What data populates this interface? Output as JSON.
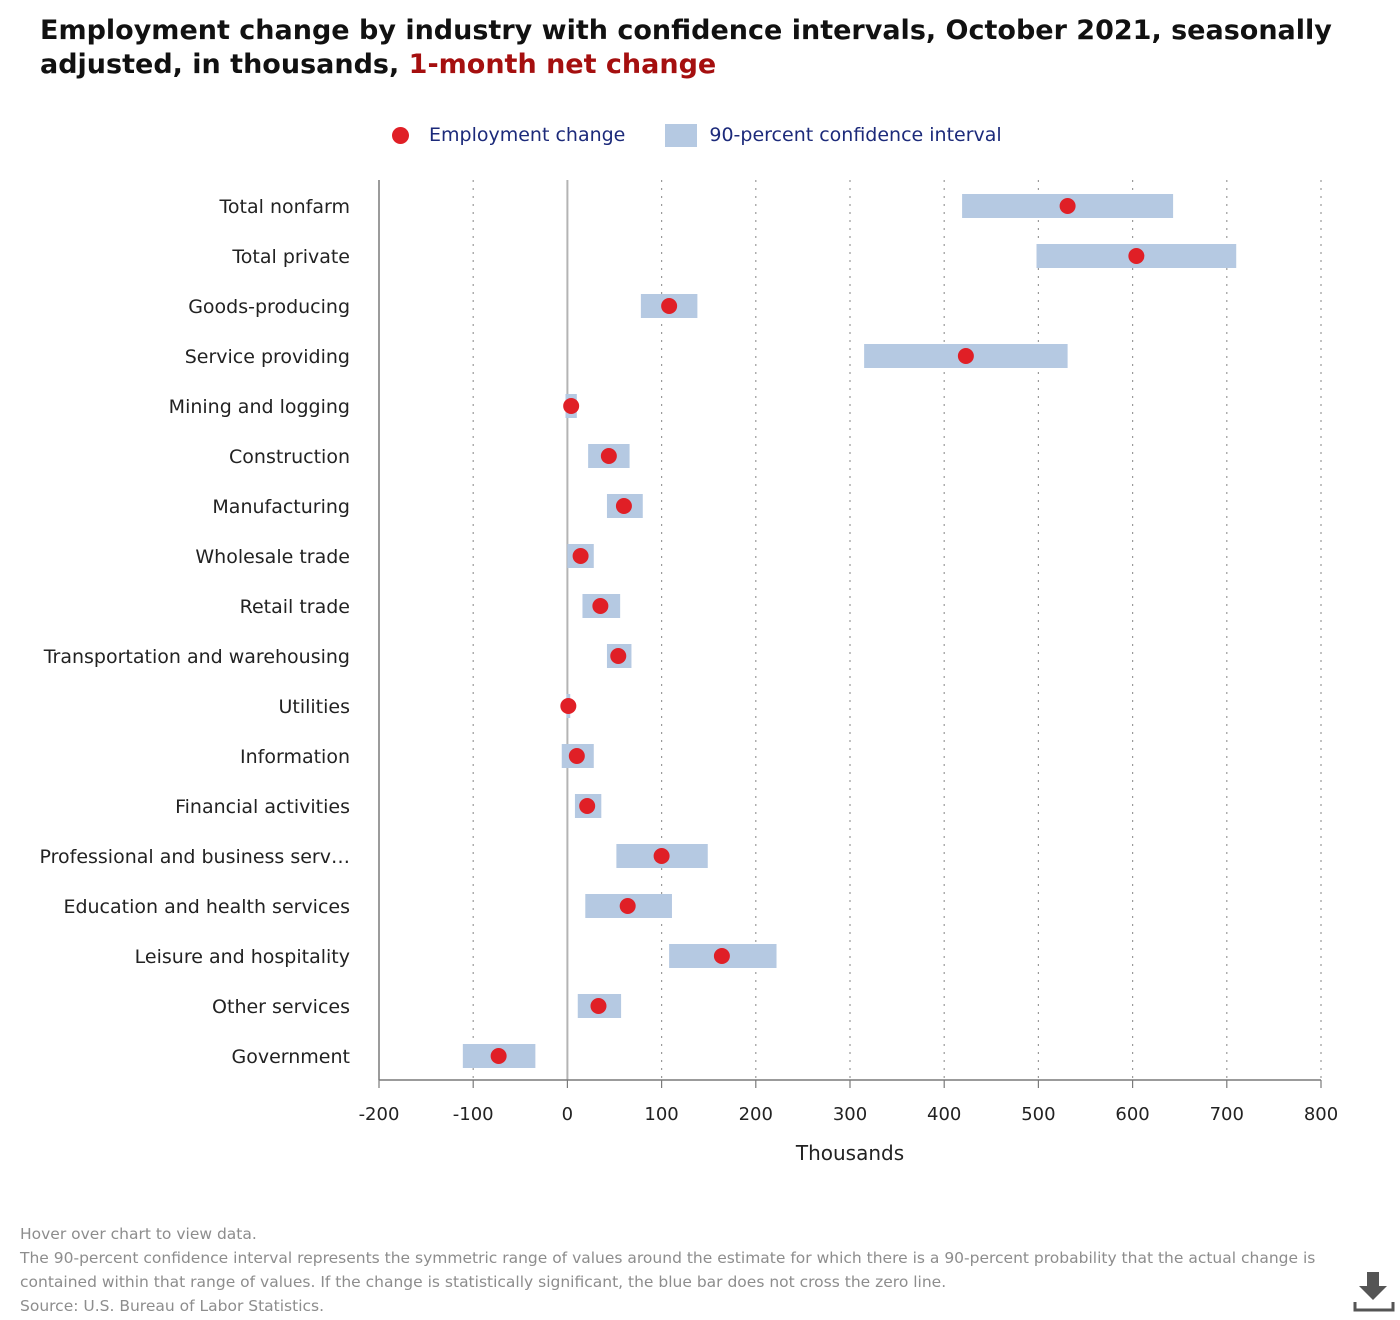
{
  "title": {
    "main": "Employment change by industry with confidence intervals, October 2021, seasonally adjusted, in thousands,",
    "highlight": "1-month net change"
  },
  "legend": {
    "point_label": "Employment change",
    "interval_label": "90-percent confidence interval"
  },
  "chart_data": {
    "type": "dot-interval",
    "xlabel": "Thousands",
    "xlim": [
      -200,
      800
    ],
    "xticks": [
      -200,
      -100,
      0,
      100,
      200,
      300,
      400,
      500,
      600,
      700,
      800
    ],
    "grid": "vertical dotted",
    "legend_position": "top",
    "colors": {
      "point": "#e01f26",
      "interval": "#b5c9e2",
      "legend_text": "#1c2a7a"
    },
    "categories": [
      "Total nonfarm",
      "Total private",
      "Goods-producing",
      "Service providing",
      "Mining and logging",
      "Construction",
      "Manufacturing",
      "Wholesale trade",
      "Retail trade",
      "Transportation and warehousing",
      "Utilities",
      "Information",
      "Financial activities",
      "Professional and business serv…",
      "Education and health services",
      "Leisure and hospitality",
      "Other services",
      "Government"
    ],
    "values": [
      531,
      604,
      108,
      423,
      4,
      44,
      60,
      14,
      35,
      54,
      1,
      10,
      21,
      100,
      64,
      164,
      33,
      -73
    ],
    "ci_low": [
      419,
      498,
      78,
      315,
      -2,
      22,
      42,
      0,
      16,
      42,
      -1,
      -6,
      8,
      52,
      19,
      108,
      11,
      -111
    ],
    "ci_high": [
      643,
      710,
      138,
      531,
      10,
      66,
      80,
      28,
      56,
      68,
      3,
      28,
      36,
      149,
      111,
      222,
      57,
      -34
    ]
  },
  "notes": [
    "Hover over chart to view data.",
    "The 90-percent confidence interval represents the symmetric range of values around the estimate for which there is a 90-percent probability that the actual change is contained within that range of values. If the change is statistically significant, the blue bar does not cross the zero line.",
    "Source: U.S. Bureau of Labor Statistics."
  ],
  "icons": {
    "download": "download-icon"
  }
}
